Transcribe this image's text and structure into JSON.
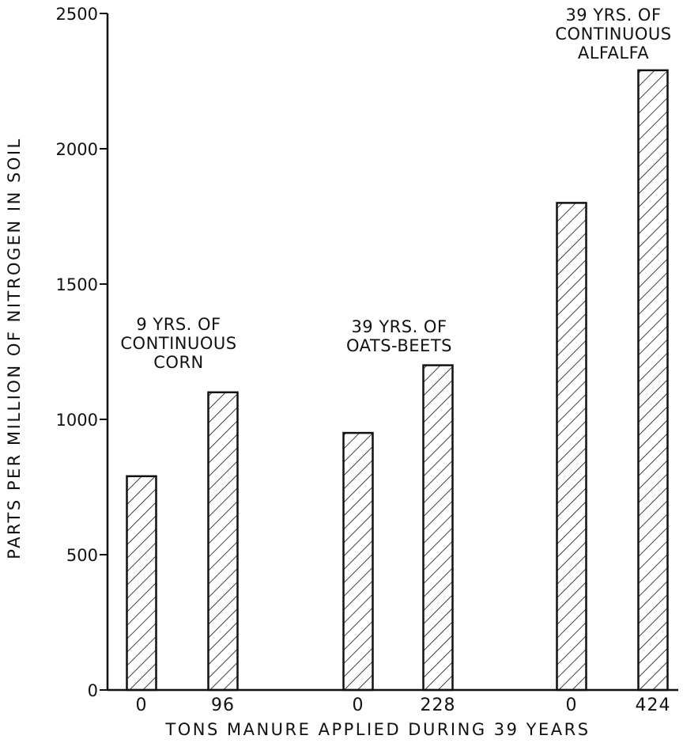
{
  "chart_data": {
    "type": "bar",
    "title": "",
    "xlabel": "TONS MANURE APPLIED DURING 39 YEARS",
    "ylabel": "PARTS PER MILLION OF NITROGEN IN SOIL",
    "ylim": [
      0,
      2500
    ],
    "yticks": [
      {
        "value": 0,
        "label": "0"
      },
      {
        "value": 500,
        "label": "500"
      },
      {
        "value": 1000,
        "label": "1000"
      },
      {
        "value": 1500,
        "label": "1500"
      },
      {
        "value": 2000,
        "label": "2000"
      },
      {
        "value": 2500,
        "label": "2500"
      }
    ],
    "grid": false,
    "bar_fill": "diagonal-hatch",
    "bar_color": "#111111",
    "groups": [
      {
        "label_lines": [
          "9 YRS. OF",
          "CONTINUOUS",
          "CORN"
        ],
        "bars": [
          {
            "category": "0",
            "value": 790
          },
          {
            "category": "96",
            "value": 1100
          }
        ]
      },
      {
        "label_lines": [
          "39 YRS. OF",
          "OATS-BEETS"
        ],
        "bars": [
          {
            "category": "0",
            "value": 950
          },
          {
            "category": "228",
            "value": 1200
          }
        ]
      },
      {
        "label_lines": [
          "39 YRS. OF",
          "CONTINUOUS",
          "ALFALFA"
        ],
        "bars": [
          {
            "category": "0",
            "value": 1800
          },
          {
            "category": "424",
            "value": 2290
          }
        ]
      }
    ]
  }
}
